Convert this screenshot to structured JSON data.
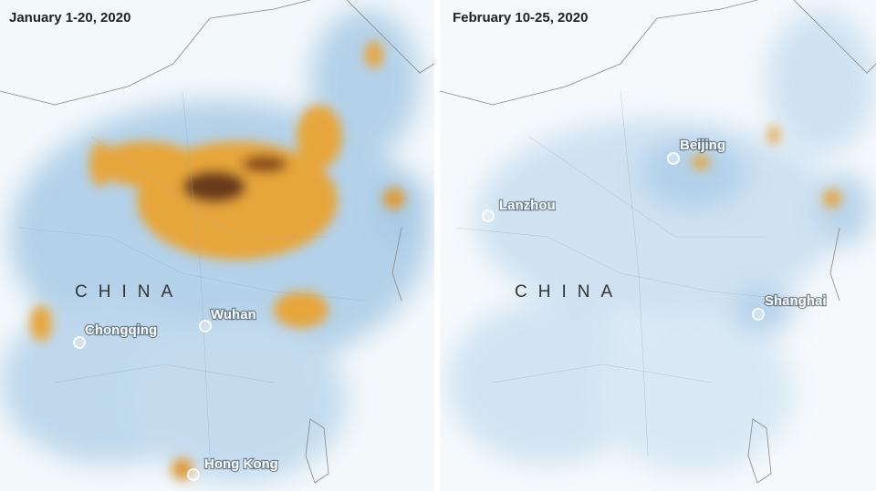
{
  "panels": [
    {
      "title": "January 1-20, 2020",
      "country_label": "CHINA",
      "cities": [
        {
          "name": "Chongqing"
        },
        {
          "name": "Wuhan"
        },
        {
          "name": "Hong Kong"
        }
      ]
    },
    {
      "title": "February 10-25, 2020",
      "country_label": "CHINA",
      "cities": [
        {
          "name": "Beijing"
        },
        {
          "name": "Lanzhou"
        },
        {
          "name": "Shanghai"
        }
      ]
    }
  ]
}
